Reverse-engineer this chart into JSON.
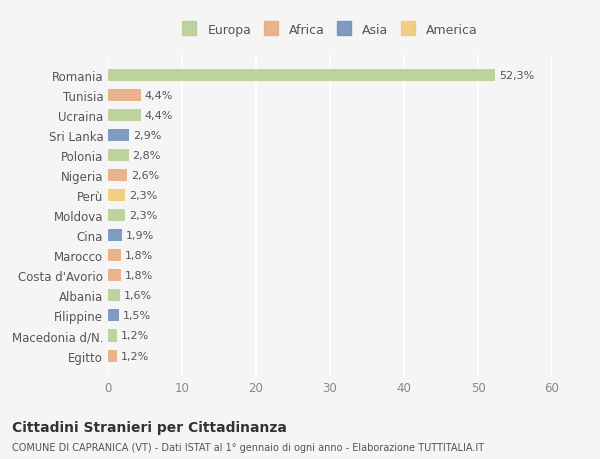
{
  "categories": [
    "Romania",
    "Tunisia",
    "Ucraina",
    "Sri Lanka",
    "Polonia",
    "Nigeria",
    "Perù",
    "Moldova",
    "Cina",
    "Marocco",
    "Costa d'Avorio",
    "Albania",
    "Filippine",
    "Macedonia d/N.",
    "Egitto"
  ],
  "values": [
    52.3,
    4.4,
    4.4,
    2.9,
    2.8,
    2.6,
    2.3,
    2.3,
    1.9,
    1.8,
    1.8,
    1.6,
    1.5,
    1.2,
    1.2
  ],
  "labels": [
    "52,3%",
    "4,4%",
    "4,4%",
    "2,9%",
    "2,8%",
    "2,6%",
    "2,3%",
    "2,3%",
    "1,9%",
    "1,8%",
    "1,8%",
    "1,6%",
    "1,5%",
    "1,2%",
    "1,2%"
  ],
  "continents": [
    "Europa",
    "Africa",
    "Europa",
    "Asia",
    "Europa",
    "Africa",
    "America",
    "Europa",
    "Asia",
    "Africa",
    "Africa",
    "Europa",
    "Asia",
    "Europa",
    "Africa"
  ],
  "continent_colors": {
    "Europa": "#b5cc8e",
    "Africa": "#e8a87c",
    "Asia": "#6b8cba",
    "America": "#f0c96e"
  },
  "legend_order": [
    "Europa",
    "Africa",
    "Asia",
    "America"
  ],
  "title": "Cittadini Stranieri per Cittadinanza",
  "subtitle": "COMUNE DI CAPRANICA (VT) - Dati ISTAT al 1° gennaio di ogni anno - Elaborazione TUTTITALIA.IT",
  "xlim": [
    0,
    60
  ],
  "xticks": [
    0,
    10,
    20,
    30,
    40,
    50,
    60
  ],
  "background_color": "#f5f5f5",
  "grid_color": "#ffffff",
  "bar_height": 0.6
}
